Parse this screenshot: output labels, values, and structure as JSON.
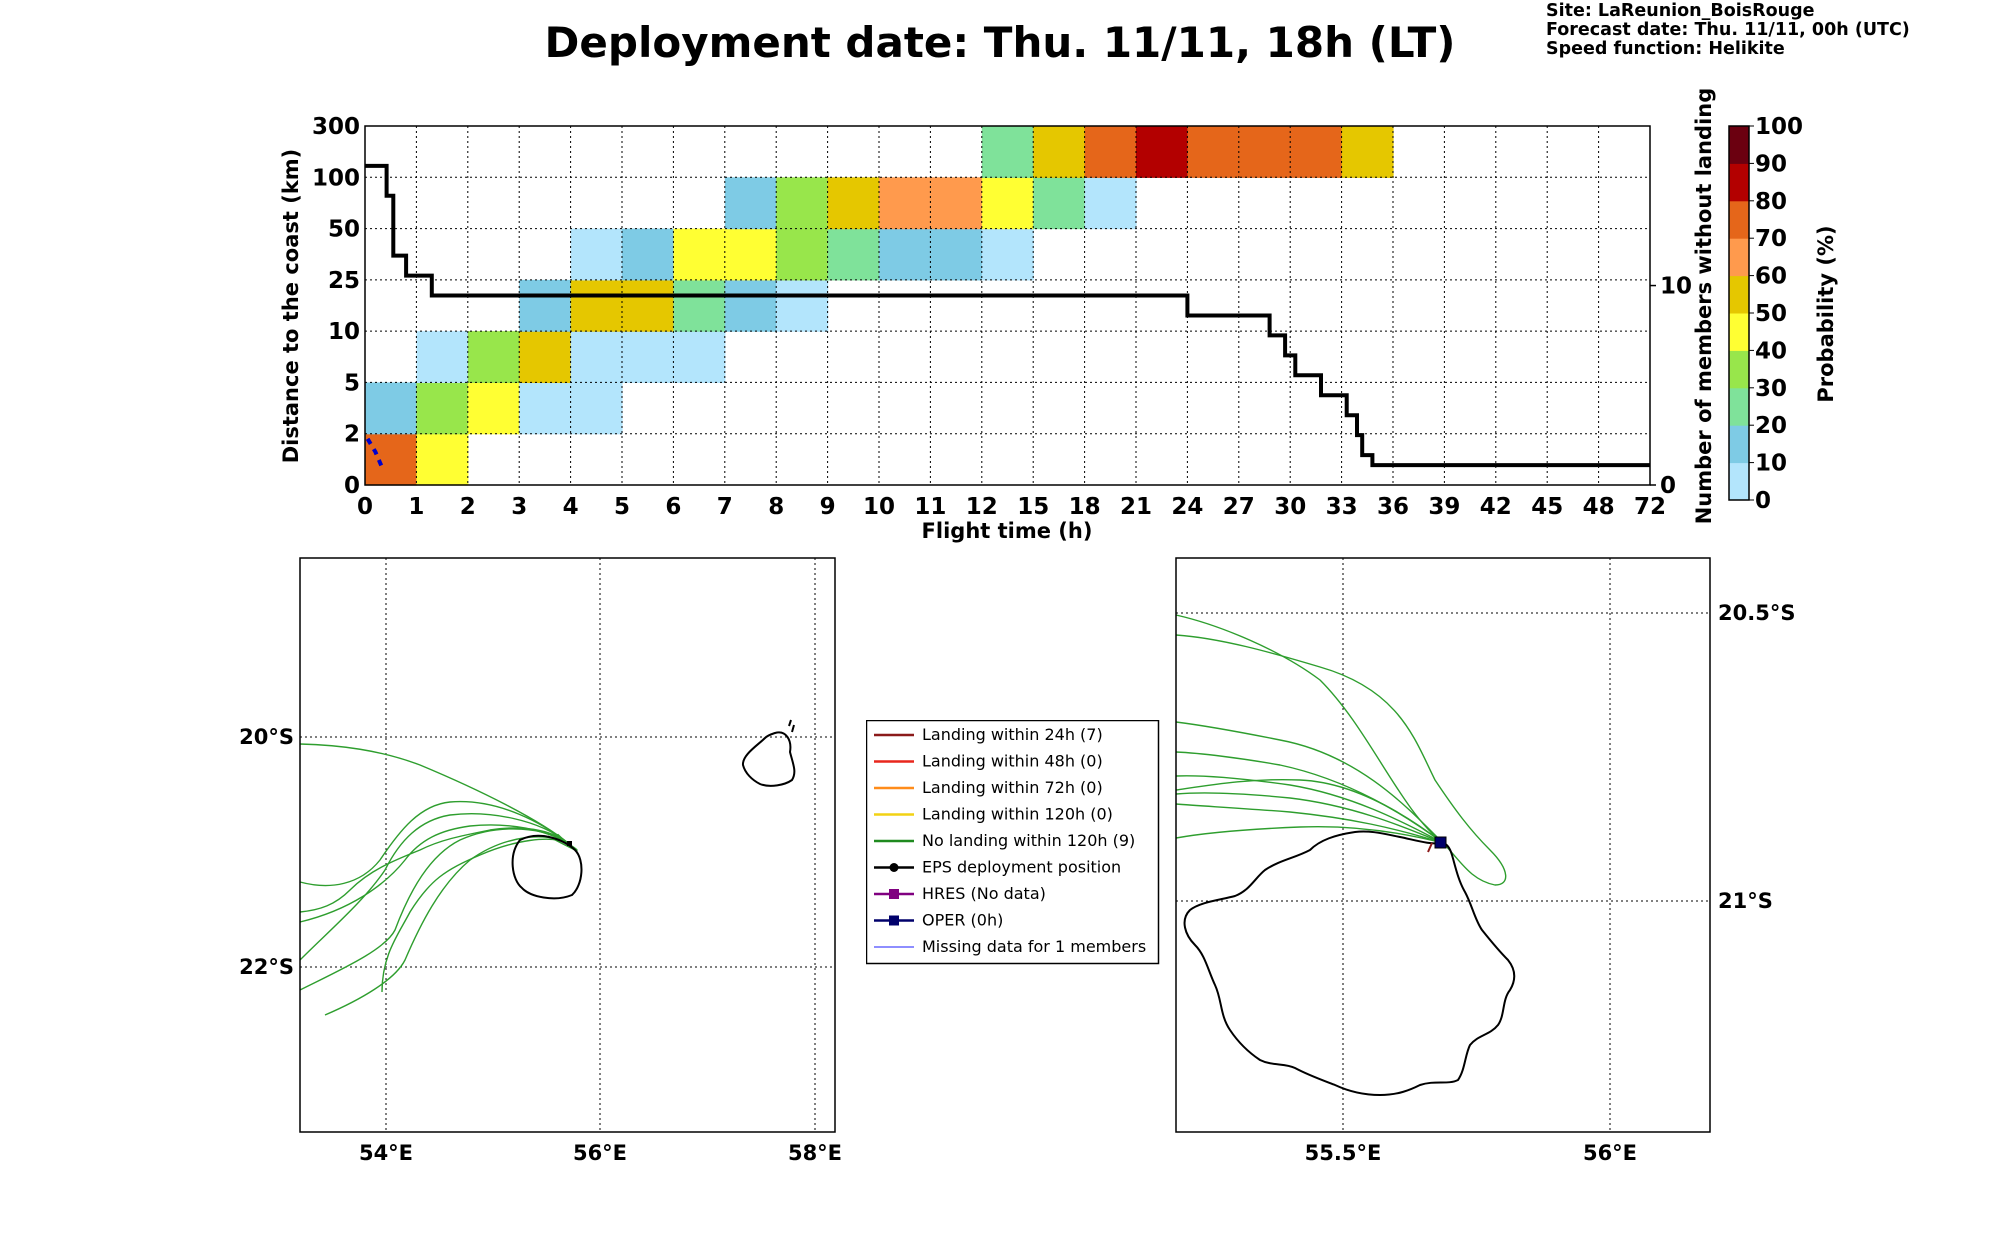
{
  "header": {
    "title": "Deployment date: Thu. 11/11, 18h (LT)",
    "site": "Site: LaReunion_BoisRouge",
    "forecast": "Forecast date: Thu. 11/11, 00h (UTC)",
    "speed": "Speed function: Helikite"
  },
  "colors": {
    "bins": [
      "#b3e5fc",
      "#7ecbe5",
      "#7fe29a",
      "#98e64b",
      "#ffff33",
      "#e5c700",
      "#ff9a4d",
      "#e5661a",
      "#b30000",
      "#6b0010"
    ],
    "survival_line": "#000000",
    "blue_dash": "#0000cc",
    "trajectory": "#2e9e2e"
  },
  "chart_data": {
    "type": "heatmap",
    "xlabel": "Flight time (h)",
    "ylabel": "Distance to the coast (km)",
    "y2label": "Number of members without landing",
    "colorbar_label": "Probability (%)",
    "x_ticks": [
      "0",
      "1",
      "2",
      "3",
      "4",
      "5",
      "6",
      "7",
      "8",
      "9",
      "10",
      "11",
      "12",
      "15",
      "18",
      "21",
      "24",
      "27",
      "30",
      "33",
      "36",
      "39",
      "42",
      "45",
      "48",
      "72"
    ],
    "y_ticks": [
      "0",
      "2",
      "5",
      "10",
      "25",
      "50",
      "100",
      "300"
    ],
    "y2_ticks": [
      "0",
      "10"
    ],
    "colorbar_ticks": [
      "0",
      "10",
      "20",
      "30",
      "40",
      "50",
      "60",
      "70",
      "80",
      "90",
      "100"
    ],
    "cells": [
      [
        0,
        0,
        7
      ],
      [
        1,
        0,
        4
      ],
      [
        0,
        1,
        1
      ],
      [
        1,
        1,
        3
      ],
      [
        2,
        1,
        4
      ],
      [
        3,
        1,
        0
      ],
      [
        4,
        1,
        0
      ],
      [
        1,
        2,
        0
      ],
      [
        2,
        2,
        3
      ],
      [
        3,
        2,
        5
      ],
      [
        4,
        2,
        0
      ],
      [
        5,
        2,
        0
      ],
      [
        6,
        2,
        0
      ],
      [
        3,
        3,
        1
      ],
      [
        4,
        3,
        5
      ],
      [
        5,
        3,
        5
      ],
      [
        6,
        3,
        2
      ],
      [
        7,
        3,
        1
      ],
      [
        8,
        3,
        0
      ],
      [
        4,
        4,
        0
      ],
      [
        5,
        4,
        1
      ],
      [
        6,
        4,
        4
      ],
      [
        7,
        4,
        4
      ],
      [
        8,
        4,
        3
      ],
      [
        9,
        4,
        2
      ],
      [
        10,
        4,
        1
      ],
      [
        11,
        4,
        1
      ],
      [
        12,
        4,
        0
      ],
      [
        7,
        5,
        1
      ],
      [
        8,
        5,
        3
      ],
      [
        9,
        5,
        5
      ],
      [
        10,
        5,
        6
      ],
      [
        11,
        5,
        6
      ],
      [
        12,
        5,
        4
      ],
      [
        13,
        5,
        2
      ],
      [
        14,
        5,
        0
      ],
      [
        12,
        6,
        2
      ],
      [
        13,
        6,
        5
      ],
      [
        14,
        6,
        7
      ],
      [
        15,
        6,
        8
      ],
      [
        16,
        6,
        7
      ],
      [
        17,
        6,
        7
      ],
      [
        18,
        6,
        7
      ],
      [
        19,
        6,
        5
      ]
    ],
    "members_without_landing": [
      {
        "t": 0,
        "n": 16
      },
      {
        "t": 0.42,
        "n": 16
      },
      {
        "t": 0.42,
        "n": 14.5
      },
      {
        "t": 0.55,
        "n": 14.5
      },
      {
        "t": 0.55,
        "n": 11.5
      },
      {
        "t": 0.8,
        "n": 11.5
      },
      {
        "t": 0.8,
        "n": 10.5
      },
      {
        "t": 1.3,
        "n": 10.5
      },
      {
        "t": 1.3,
        "n": 9.5
      },
      {
        "t": 16,
        "n": 9.5
      },
      {
        "t": 16,
        "n": 8.5
      },
      {
        "t": 17.6,
        "n": 8.5
      },
      {
        "t": 17.6,
        "n": 7.5
      },
      {
        "t": 17.9,
        "n": 7.5
      },
      {
        "t": 17.9,
        "n": 6.5
      },
      {
        "t": 18.1,
        "n": 6.5
      },
      {
        "t": 18.1,
        "n": 5.5
      },
      {
        "t": 18.6,
        "n": 5.5
      },
      {
        "t": 18.6,
        "n": 4.5
      },
      {
        "t": 19.1,
        "n": 4.5
      },
      {
        "t": 19.1,
        "n": 3.5
      },
      {
        "t": 19.3,
        "n": 3.5
      },
      {
        "t": 19.3,
        "n": 2.5
      },
      {
        "t": 19.4,
        "n": 2.5
      },
      {
        "t": 19.4,
        "n": 1.5
      },
      {
        "t": 19.6,
        "n": 1.5
      },
      {
        "t": 19.6,
        "n": 1
      },
      {
        "t": 25,
        "n": 1
      }
    ],
    "missing_member_path": [
      [
        0.05,
        0.9
      ],
      [
        0.2,
        0.65
      ],
      [
        0.35,
        0.3
      ]
    ]
  },
  "map_left": {
    "lon_ticks": [
      "54°E",
      "56°E",
      "58°E"
    ],
    "lat_ticks": [
      "20°S",
      "22°S"
    ]
  },
  "map_right": {
    "lon_ticks": [
      "55.5°E",
      "56°E"
    ],
    "lat_ticks": [
      "20.5°S",
      "21°S"
    ]
  },
  "legend": [
    {
      "label": "Landing within 24h (7)",
      "color": "#8b1a1a",
      "marker": "none"
    },
    {
      "label": "Landing within 48h (0)",
      "color": "#e8271d",
      "marker": "none"
    },
    {
      "label": "Landing within 72h (0)",
      "color": "#ff8c1a",
      "marker": "none"
    },
    {
      "label": "Landing within 120h (0)",
      "color": "#f2d214",
      "marker": "none"
    },
    {
      "label": "No landing within 120h (9)",
      "color": "#1f8a1f",
      "marker": "none"
    },
    {
      "label": "EPS deployment position",
      "color": "#000000",
      "marker": "circle"
    },
    {
      "label": "HRES (No data)",
      "color": "#800080",
      "marker": "square"
    },
    {
      "label": "OPER (0h)",
      "color": "#00006b",
      "marker": "square"
    },
    {
      "label": "Missing data for 1 members",
      "color": "#4a4aff",
      "marker": "thin"
    }
  ]
}
